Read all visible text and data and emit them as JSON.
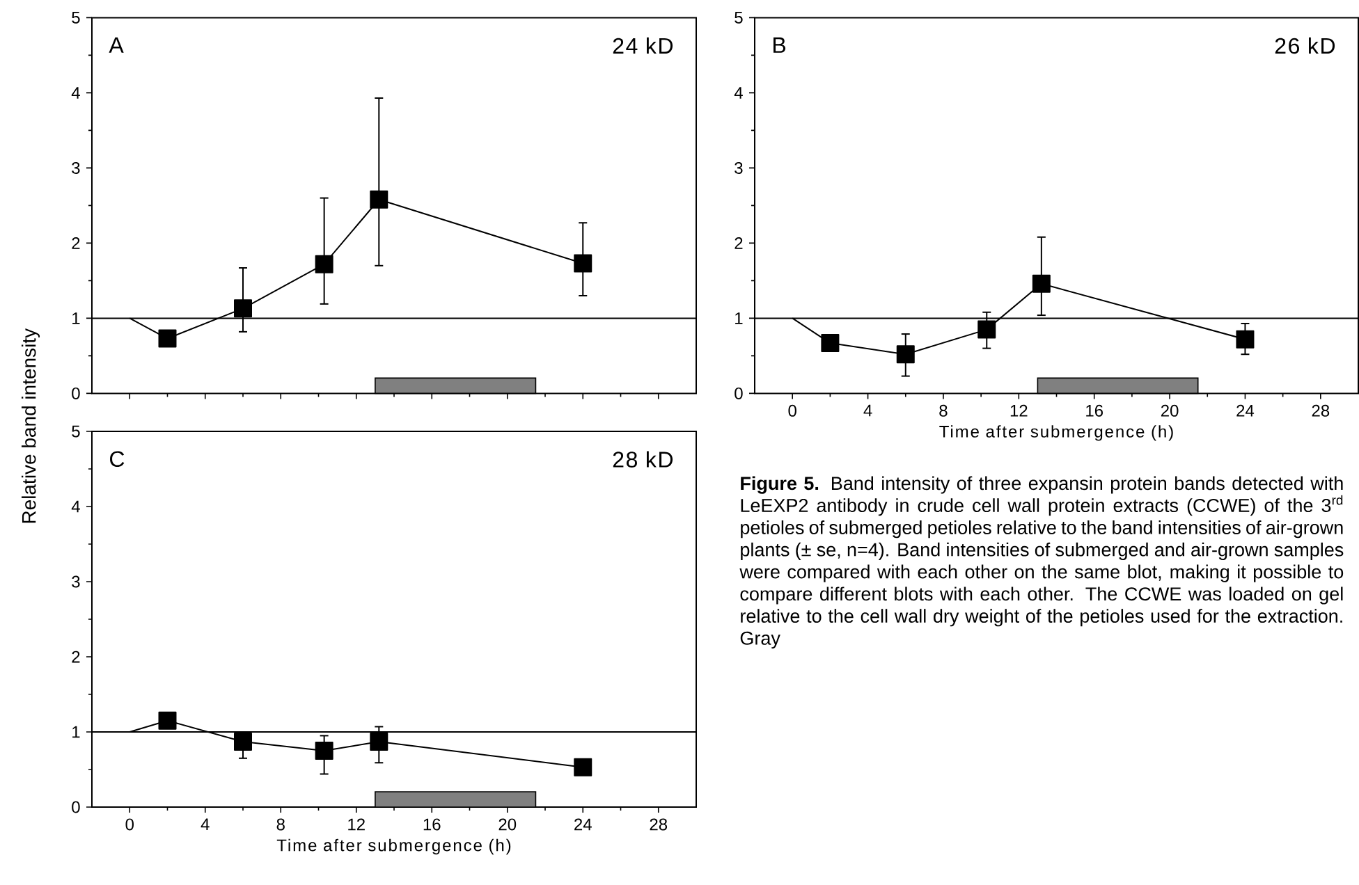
{
  "chart_data": [
    {
      "type": "line",
      "title": "A",
      "subtitle": "24 kD",
      "ylabel": "Relative band intensity",
      "xlim": [
        -2,
        30
      ],
      "xticks": [
        0,
        4,
        8,
        12,
        16,
        20,
        24,
        28
      ],
      "ylim": [
        0,
        5
      ],
      "yticks": [
        0,
        1,
        2,
        3,
        4,
        5
      ],
      "tick_labels": "y",
      "ref_lines": [
        {
          "axis": "y",
          "value": 1
        }
      ],
      "bands": [
        {
          "axis": "x",
          "from": 13,
          "to": 21.5,
          "color": "#808080"
        }
      ],
      "series": [
        {
          "marker": "none",
          "color": "#000000",
          "x": [
            0,
            2,
            6,
            10.3,
            13.2,
            24
          ],
          "values": [
            1.0,
            0.73,
            1.13,
            1.72,
            2.58,
            1.73
          ]
        },
        {
          "type": "scatter",
          "marker": "square",
          "color": "#000000",
          "x": [
            2,
            6,
            10.3,
            13.2,
            24
          ],
          "values": [
            0.73,
            1.13,
            1.72,
            2.58,
            1.73
          ],
          "errors": [
            null,
            [
              0.82,
              1.67
            ],
            [
              1.19,
              2.6
            ],
            [
              1.7,
              3.93
            ],
            [
              1.3,
              2.27
            ]
          ]
        }
      ]
    },
    {
      "type": "line",
      "title": "B",
      "subtitle": "26 kD",
      "xlabel": "Time after submergence (h)",
      "xlim": [
        -2,
        30
      ],
      "xticks": [
        0,
        4,
        8,
        12,
        16,
        20,
        24,
        28
      ],
      "ylim": [
        0,
        5
      ],
      "yticks": [
        0,
        1,
        2,
        3,
        4,
        5
      ],
      "ref_lines": [
        {
          "axis": "y",
          "value": 1
        }
      ],
      "bands": [
        {
          "axis": "x",
          "from": 13,
          "to": 21.5,
          "color": "#808080"
        }
      ],
      "annotations": [
        "**Figure 5.** Band intensity of three expansin protein bands detected with LeEXP2 antibody in crude cell wall protein extracts (CCWE) of the 3$^{rd}$ petioles of submerged petioles relative to the band intensities of air-grown plants (± se, n=4). Band intensities of submerged and air-grown samples were compared with each other on the same blot, making it possible to compare different blots with each other. The CCWE was loaded on gel relative to the cell wall dry weight of the petioles used for the extraction. Gray"
      ],
      "series": [
        {
          "marker": "none",
          "color": "#000000",
          "x": [
            0,
            2,
            6,
            10.3,
            13.2,
            24
          ],
          "values": [
            1.0,
            0.67,
            0.52,
            0.85,
            1.46,
            0.72
          ]
        },
        {
          "type": "scatter",
          "marker": "square",
          "color": "#000000",
          "x": [
            2,
            6,
            10.3,
            13.2,
            24
          ],
          "values": [
            0.67,
            0.52,
            0.85,
            1.46,
            0.72
          ],
          "errors": [
            null,
            [
              0.23,
              0.79
            ],
            [
              0.6,
              1.08
            ],
            [
              1.04,
              2.08
            ],
            [
              0.52,
              0.93
            ]
          ]
        }
      ]
    },
    {
      "type": "line",
      "title": "C",
      "subtitle": "28 kD",
      "xlabel": "Time after submergence (h)",
      "xlim": [
        -2,
        30
      ],
      "xticks": [
        0,
        4,
        8,
        12,
        16,
        20,
        24,
        28
      ],
      "ylim": [
        0,
        5
      ],
      "yticks": [
        0,
        1,
        2,
        3,
        4,
        5
      ],
      "ref_lines": [
        {
          "axis": "y",
          "value": 1
        }
      ],
      "bands": [
        {
          "axis": "x",
          "from": 13,
          "to": 21.5,
          "color": "#808080"
        }
      ],
      "series": [
        {
          "marker": "none",
          "color": "#000000",
          "x": [
            0,
            2,
            6,
            10.3,
            13.2,
            24
          ],
          "values": [
            1.0,
            1.15,
            0.87,
            0.75,
            0.87,
            0.53
          ]
        },
        {
          "type": "scatter",
          "marker": "square",
          "color": "#000000",
          "x": [
            2,
            6,
            10.3,
            13.2,
            24
          ],
          "values": [
            1.15,
            0.87,
            0.75,
            0.87,
            0.53
          ],
          "errors": [
            null,
            [
              0.65,
              0.87
            ],
            [
              0.44,
              0.95
            ],
            [
              0.59,
              1.07
            ],
            null
          ]
        }
      ]
    }
  ]
}
